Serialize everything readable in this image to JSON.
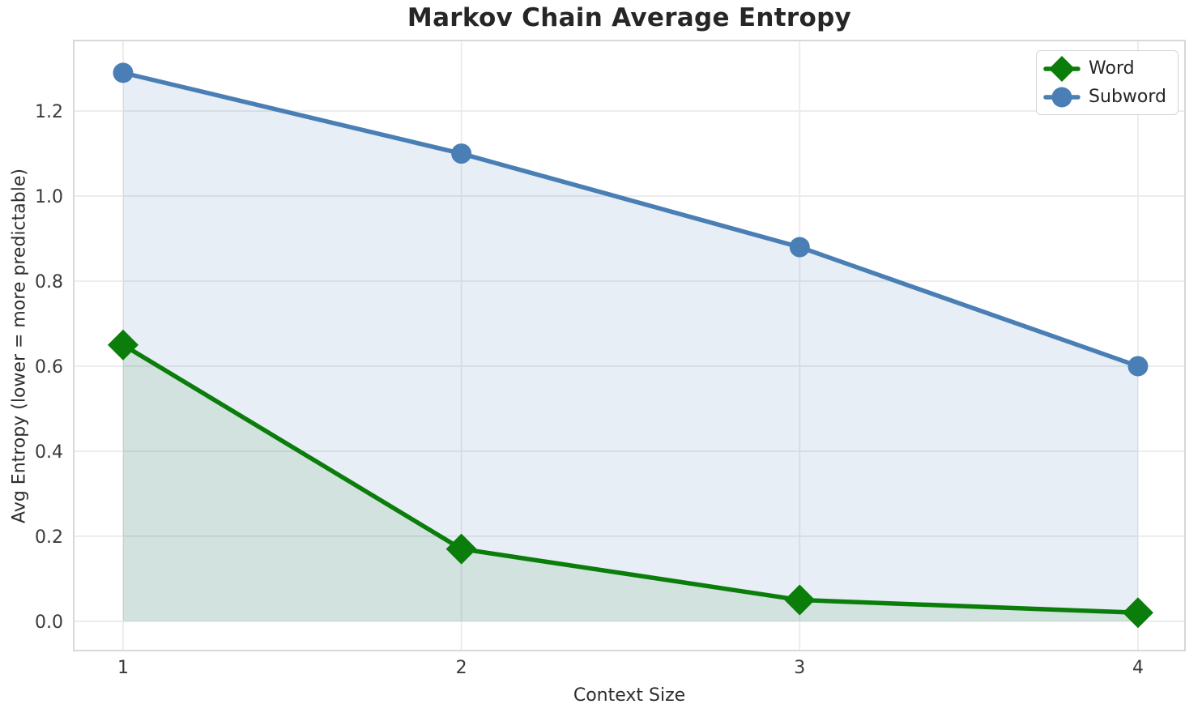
{
  "chart_data": {
    "type": "line",
    "title": "Markov Chain Average Entropy",
    "xlabel": "Context Size",
    "ylabel": "Avg Entropy (lower = more predictable)",
    "x": [
      1,
      2,
      3,
      4
    ],
    "series": [
      {
        "name": "Word",
        "values": [
          0.65,
          0.17,
          0.05,
          0.02
        ],
        "color": "#0a7d0a",
        "marker": "diamond",
        "fill": true,
        "fill_alpha": 0.1
      },
      {
        "name": "Subword",
        "values": [
          1.29,
          1.1,
          0.88,
          0.6
        ],
        "color": "#4a7fb5",
        "marker": "circle",
        "fill": true,
        "fill_alpha": 0.13
      }
    ],
    "xticks": [
      1,
      2,
      3,
      4
    ],
    "yticks": [
      0.0,
      0.2,
      0.4,
      0.6,
      0.8,
      1.0,
      1.2
    ],
    "xlim": [
      0.854,
      4.139
    ],
    "ylim": [
      -0.069,
      1.366
    ],
    "fill_baseline": 0,
    "grid": true,
    "legend_position": "upper right",
    "grid_color": "#e8e8e8",
    "spine_color": "#d8d8d8",
    "tick_color": "#3a3a3a"
  }
}
